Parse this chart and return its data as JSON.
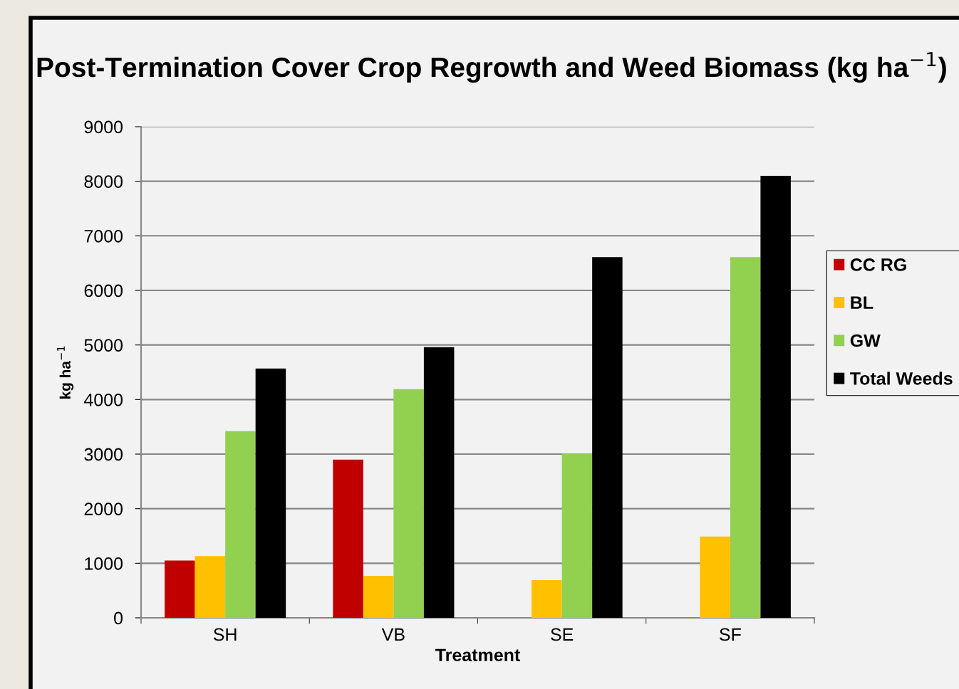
{
  "chart_data": {
    "type": "bar",
    "title": "Post-Termination Cover Crop Regrowth and Weed Biomass (kg ha$^{−1}$)",
    "xlabel": "Treatment",
    "ylabel": "kg ha$^{−1}$",
    "categories": [
      "SH",
      "VB",
      "SE",
      "SF"
    ],
    "series": [
      {
        "name": "CC RG",
        "color": "#c00000",
        "values": [
          1050,
          2900,
          null,
          null
        ]
      },
      {
        "name": "BL",
        "color": "#ffc000",
        "values": [
          1130,
          770,
          690,
          1490
        ]
      },
      {
        "name": "GW",
        "color": "#92d050",
        "values": [
          3420,
          4190,
          3010,
          6610
        ]
      },
      {
        "name": "Total Weeds",
        "color": "#000000",
        "values": [
          4570,
          4960,
          6610,
          8100
        ]
      }
    ],
    "ylim": [
      0,
      9000
    ],
    "yticks": [
      0,
      1000,
      2000,
      3000,
      4000,
      5000,
      6000,
      7000,
      8000,
      9000
    ],
    "grid": "y",
    "legend": "right"
  }
}
